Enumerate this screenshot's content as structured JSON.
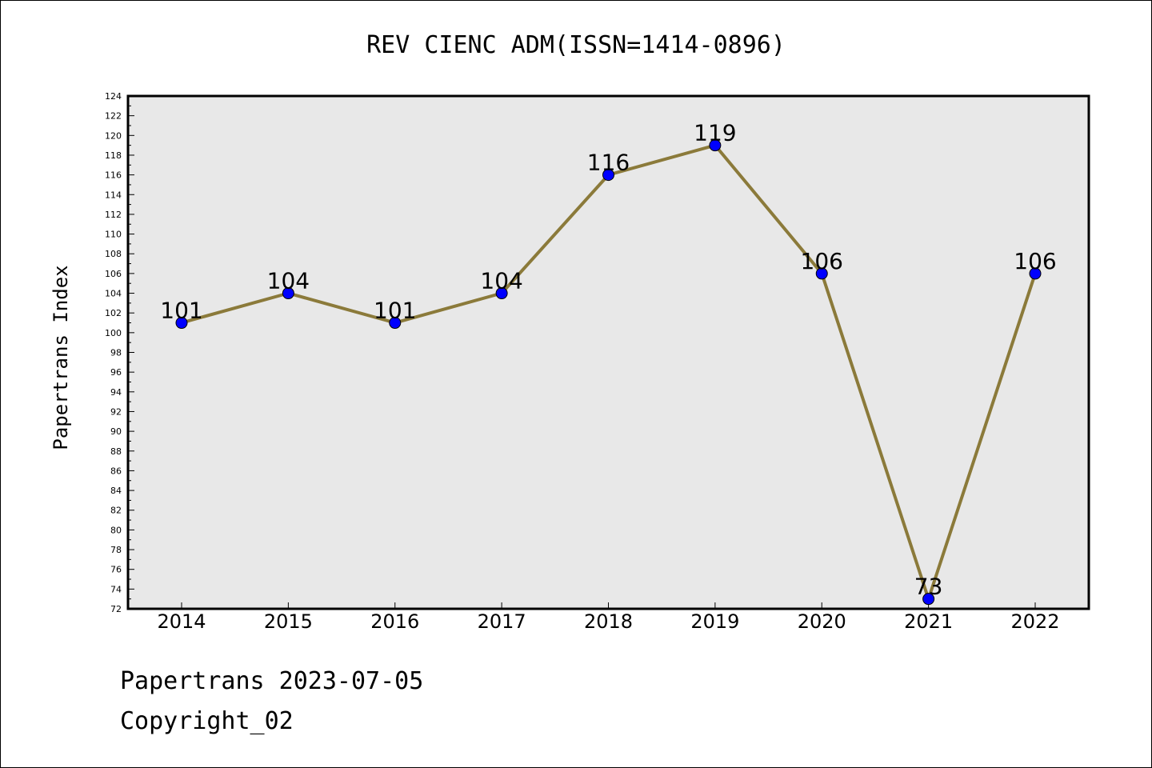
{
  "chart_data": {
    "type": "line",
    "title": "REV CIENC ADM(ISSN=1414-0896)",
    "xlabel": "",
    "ylabel": "Papertrans Index",
    "categories": [
      "2014",
      "2015",
      "2016",
      "2017",
      "2018",
      "2019",
      "2020",
      "2021",
      "2022"
    ],
    "series": [
      {
        "values": [
          101,
          104,
          101,
          104,
          116,
          119,
          106,
          73,
          106
        ]
      }
    ],
    "data_labels": [
      "101",
      "104",
      "101",
      "104",
      "116",
      "119",
      "106",
      "73",
      "106"
    ],
    "ylim": [
      72,
      124
    ],
    "y_ticks": [
      72,
      74,
      76,
      78,
      80,
      82,
      84,
      86,
      88,
      90,
      92,
      94,
      96,
      98,
      100,
      102,
      104,
      106,
      108,
      110,
      112,
      114,
      116,
      118,
      120,
      122,
      124
    ],
    "grid": false,
    "legend": "none",
    "colors": {
      "line": "#8b7a3a",
      "marker": "#0000ff",
      "plot_background": "#e8e8e8"
    }
  },
  "footer": {
    "line1": "Papertrans 2023-07-05",
    "line2": "Copyright_02"
  }
}
